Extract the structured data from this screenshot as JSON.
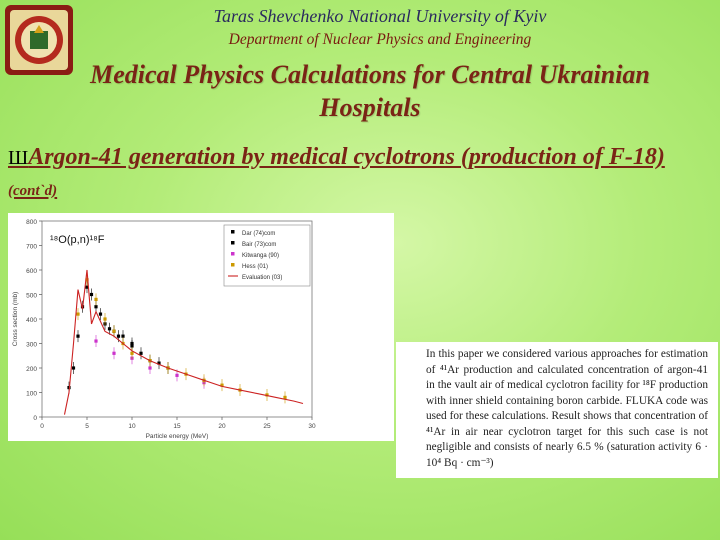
{
  "header": {
    "university": "Taras Shevchenko National University of Kyiv",
    "department": "Department of Nuclear Physics and Engineering",
    "title": "Medical Physics Calculations for Central Ukrainian Hospitals"
  },
  "slide": {
    "bullet": "Ш",
    "subtitle": "Argon-41 generation by medical cyclotrons (production of F-18)",
    "subtitle_suffix": "(cont`d)"
  },
  "abstract": {
    "text": "In this paper we considered various approaches for estimation of ⁴¹Ar production and calculated concentration of argon-41 in the vault air of medical cyclotron facility for ¹⁸F production with inner shield containing boron carbide. FLUKA code was used for these calculations. Result shows that concentration of ⁴¹Ar in air near cyclotron target for this such case is not negligible and consists of nearly 6.5 % (saturation activity 6 · 10⁴ Bq · cm⁻³)"
  },
  "chart_data": {
    "type": "scatter",
    "title": "¹⁸O(p,n)¹⁸F",
    "xlabel": "Particle energy (MeV)",
    "ylabel": "Cross section (mb)",
    "xlim": [
      0,
      30
    ],
    "ylim": [
      0,
      800
    ],
    "legend_position": "top-right",
    "series": [
      {
        "name": "Dar (74)com",
        "color": "#000000",
        "x": [
          3,
          4,
          5,
          6,
          7,
          8,
          9,
          10,
          12,
          14
        ],
        "y": [
          120,
          330,
          530,
          450,
          380,
          350,
          330,
          290,
          230,
          200
        ]
      },
      {
        "name": "Bair (73)com",
        "color": "#000000",
        "x": [
          3.5,
          4.5,
          5.5,
          6.5,
          7.5,
          8.5,
          10,
          11,
          13
        ],
        "y": [
          200,
          450,
          500,
          420,
          360,
          330,
          300,
          260,
          220
        ]
      },
      {
        "name": "Kitwanga (90)",
        "color": "#cc33cc",
        "x": [
          6,
          8,
          10,
          12,
          15,
          18
        ],
        "y": [
          310,
          260,
          240,
          200,
          170,
          140
        ]
      },
      {
        "name": "Hess (01)",
        "color": "#cc9900",
        "x": [
          4,
          5,
          6,
          7,
          8,
          9,
          10,
          12,
          14,
          16,
          18,
          20,
          22,
          25,
          27
        ],
        "y": [
          420,
          560,
          480,
          400,
          350,
          300,
          260,
          230,
          200,
          175,
          150,
          130,
          110,
          90,
          80
        ]
      },
      {
        "name": "Evaluation (03)",
        "color": "#cc2222",
        "x": [
          2.5,
          3,
          3.5,
          4,
          4.5,
          5,
          5.5,
          6,
          7,
          8,
          9,
          10,
          12,
          14,
          16,
          18,
          20,
          22,
          24,
          26,
          28,
          29
        ],
        "y": [
          10,
          100,
          300,
          520,
          440,
          600,
          380,
          430,
          350,
          330,
          300,
          270,
          230,
          200,
          175,
          150,
          125,
          110,
          95,
          80,
          65,
          55
        ]
      }
    ]
  }
}
